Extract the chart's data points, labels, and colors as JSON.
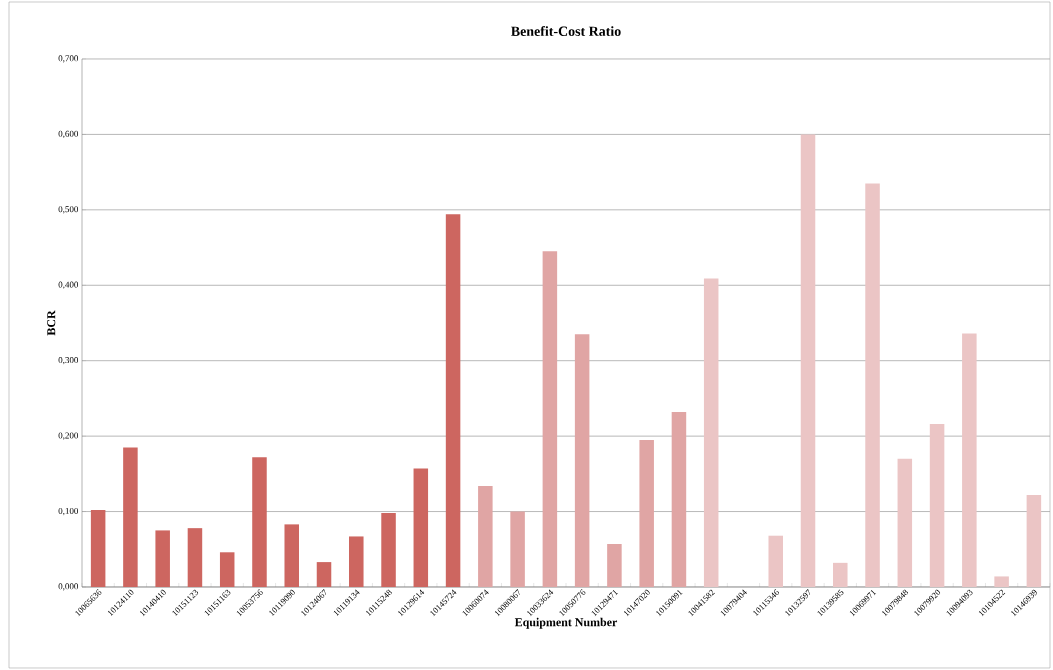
{
  "chart_data": {
    "type": "bar",
    "title": "Benefit-Cost Ratio",
    "xlabel": "Equipment Number",
    "ylabel": "BCR",
    "categories": [
      "10065636",
      "10124110",
      "10140410",
      "10151123",
      "10151163",
      "10053756",
      "10119090",
      "10124067",
      "10119134",
      "10115248",
      "10129614",
      "10145724",
      "10060074",
      "10080067",
      "10033624",
      "10050776",
      "10129471",
      "10147020",
      "10150091",
      "10041582",
      "10079404",
      "10115346",
      "10132597",
      "10139585",
      "10069971",
      "10079848",
      "10079920",
      "10094093",
      "10104522",
      "10146939"
    ],
    "values": [
      0.102,
      0.185,
      0.075,
      0.078,
      0.046,
      0.172,
      0.083,
      0.033,
      0.067,
      0.098,
      0.157,
      0.494,
      0.134,
      0.1,
      0.445,
      0.335,
      0.057,
      0.195,
      0.232,
      0.409,
      0,
      0.068,
      0.6,
      0.032,
      0.535,
      0.17,
      0.216,
      0.336,
      0.014,
      0.122
    ],
    "colors": [
      "#cd6660",
      "#cd6660",
      "#cd6660",
      "#cd6660",
      "#cd6660",
      "#cd6660",
      "#cd6660",
      "#cd6660",
      "#cd6660",
      "#cd6660",
      "#cd6660",
      "#cd6660",
      "#e0a5a4",
      "#e0a5a4",
      "#e0a5a4",
      "#e0a5a4",
      "#e0a5a4",
      "#e0a5a4",
      "#e0a5a4",
      "#ebc5c5",
      "#ebc5c5",
      "#ebc5c5",
      "#ebc5c5",
      "#ebc5c5",
      "#ebc5c5",
      "#ebc5c5",
      "#ebc5c5",
      "#ebc5c5",
      "#ebc5c5",
      "#ebc5c5"
    ],
    "ylim": [
      0,
      0.7
    ],
    "yticks": [
      {
        "value": 0,
        "label": "0,000"
      },
      {
        "value": 0.1,
        "label": "0,100"
      },
      {
        "value": 0.2,
        "label": "0,200"
      },
      {
        "value": 0.3,
        "label": "0,300"
      },
      {
        "value": 0.4,
        "label": "0,400"
      },
      {
        "value": 0.5,
        "label": "0,500"
      },
      {
        "value": 0.6,
        "label": "0,600"
      },
      {
        "value": 0.7,
        "label": "0,700"
      }
    ],
    "grid": "y"
  }
}
